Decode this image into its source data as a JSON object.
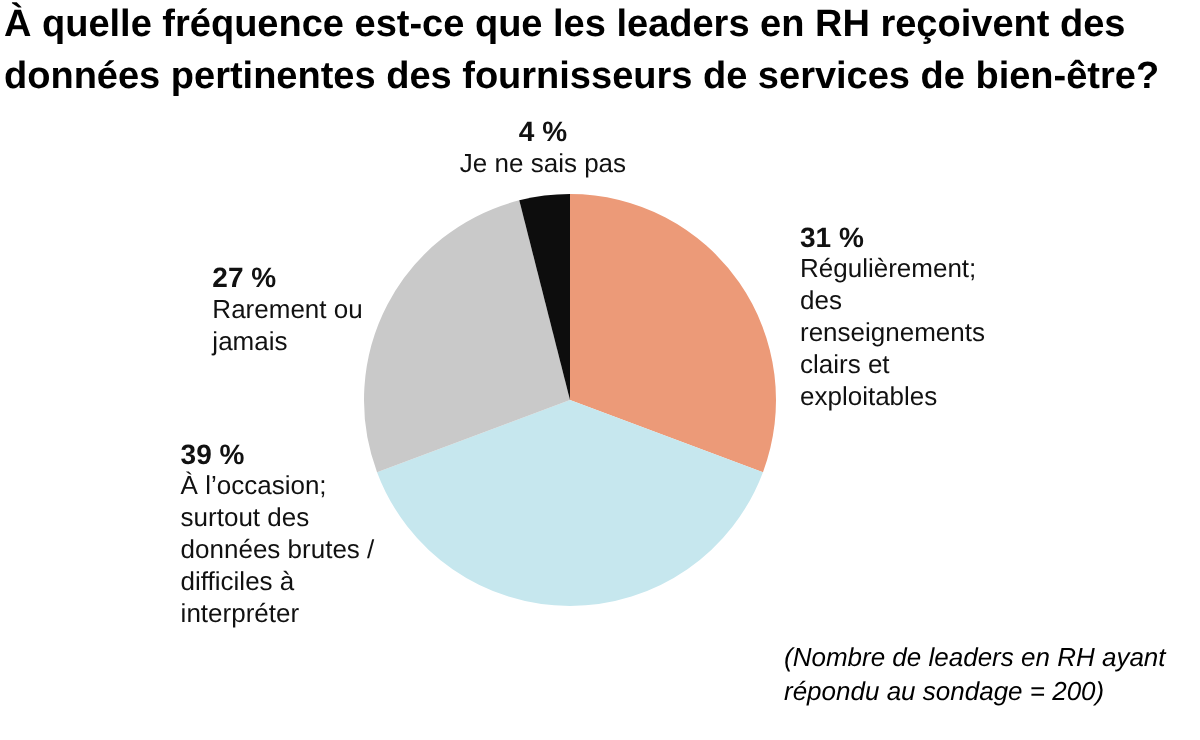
{
  "chart_data": {
    "type": "pie",
    "title": "À quelle fréquence est-ce que les leaders en RH reçoivent des données pertinentes des fournisseurs de services de bien-être?",
    "categories": [
      "Régulièrement; des renseignements clairs et exploitables",
      "À l’occasion; surtout des données brutes / difficiles à interpréter",
      "Rarement ou jamais",
      "Je ne sais pas"
    ],
    "values": [
      31,
      39,
      27,
      4
    ],
    "value_labels": [
      "31 %",
      "39 %",
      "27 %",
      "4 %"
    ],
    "colors": [
      "#ec9a78",
      "#c6e7ee",
      "#c9c9c9",
      "#0d0d0d"
    ],
    "annotations": [
      "(Nombre de leaders en RH ayant répondu au sondage = 200)"
    ]
  }
}
